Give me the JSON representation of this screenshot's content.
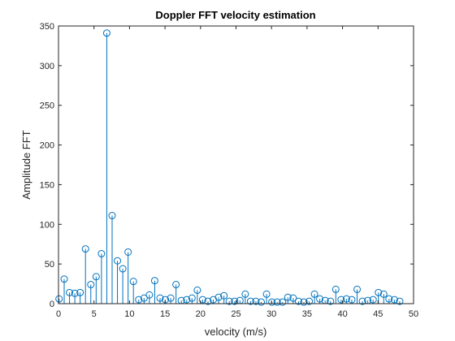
{
  "chart_data": {
    "type": "stem",
    "title": "Doppler FFT velocity estimation",
    "xlabel": "velocity (m/s)",
    "ylabel": "Amplitude FFT",
    "xlim": [
      0,
      50
    ],
    "ylim": [
      0,
      350
    ],
    "xticks": [
      0,
      5,
      10,
      15,
      20,
      25,
      30,
      35,
      40,
      45,
      50
    ],
    "yticks": [
      0,
      50,
      100,
      150,
      200,
      250,
      300,
      350
    ],
    "grid": false,
    "legend": "none",
    "color": "#0072BD",
    "series": [
      {
        "x": [
          0.08,
          0.8,
          1.55,
          2.3,
          3.05,
          3.8,
          4.55,
          5.3,
          6.05,
          6.8,
          7.55,
          8.3,
          9.05,
          9.8,
          10.55,
          11.3,
          12.05,
          12.8,
          13.55,
          14.3,
          15.05,
          15.8,
          16.55,
          17.3,
          18.05,
          18.8,
          19.55,
          20.3,
          21.05,
          21.8,
          22.55,
          23.3,
          24.05,
          24.8,
          25.55,
          26.3,
          27.05,
          27.8,
          28.55,
          29.3,
          30.05,
          30.8,
          31.55,
          32.3,
          33.05,
          33.8,
          34.55,
          35.3,
          36.05,
          36.8,
          37.55,
          38.3,
          39.05,
          39.8,
          40.55,
          41.3,
          42.05,
          42.8,
          43.55,
          44.3,
          45.05,
          45.8,
          46.55,
          47.3,
          48.05
        ],
        "y": [
          6,
          31,
          14,
          13,
          14,
          69,
          24,
          34,
          63,
          341,
          111,
          54,
          44,
          65,
          28,
          5,
          7,
          11,
          29,
          7,
          5,
          7,
          24,
          4,
          5,
          7,
          17,
          5,
          3,
          5,
          8,
          10,
          3,
          3,
          4,
          12,
          3,
          3,
          2,
          12,
          2,
          2,
          2,
          8,
          7,
          3,
          2,
          3,
          12,
          6,
          4,
          3,
          18,
          5,
          6,
          5,
          18,
          3,
          4,
          5,
          14,
          12,
          6,
          5,
          3
        ]
      }
    ]
  }
}
